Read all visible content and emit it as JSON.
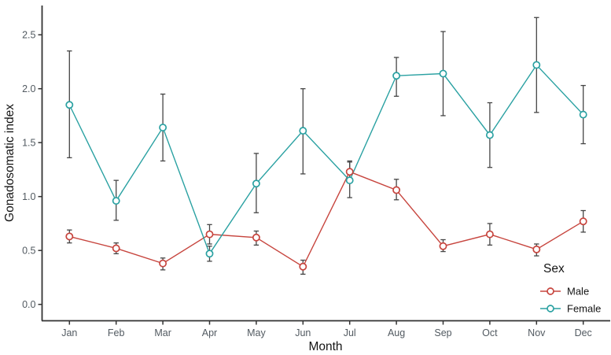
{
  "chart_data": {
    "type": "line",
    "title": "",
    "xlabel": "Month",
    "ylabel": "Gonadosomatic index",
    "categories": [
      "Jan",
      "Feb",
      "Mar",
      "Apr",
      "May",
      "Jun",
      "Jul",
      "Aug",
      "Sep",
      "Oct",
      "Nov",
      "Dec"
    ],
    "y_ticks": [
      {
        "value": 0.0,
        "label": "0.0"
      },
      {
        "value": 0.5,
        "label": "0.5"
      },
      {
        "value": 1.0,
        "label": "1.0"
      },
      {
        "value": 1.5,
        "label": "1.5"
      },
      {
        "value": 2.0,
        "label": "2.0"
      },
      {
        "value": 2.5,
        "label": "2.5"
      }
    ],
    "ylim": [
      -0.14,
      2.76
    ],
    "grid": false,
    "legend": {
      "title": "Sex",
      "position": "inside-bottom-right"
    },
    "marker": "open-circle",
    "error_bar_color": "#454545",
    "axis_color": "#333333",
    "series": [
      {
        "name": "Male",
        "color": "#c7453e",
        "values": [
          0.63,
          0.52,
          0.38,
          0.65,
          0.62,
          0.35,
          1.23,
          1.06,
          0.54,
          0.65,
          0.51,
          0.77
        ],
        "err_low": [
          0.57,
          0.47,
          0.32,
          0.56,
          0.55,
          0.28,
          1.14,
          0.97,
          0.49,
          0.55,
          0.45,
          0.67
        ],
        "err_high": [
          0.69,
          0.57,
          0.43,
          0.74,
          0.68,
          0.41,
          1.32,
          1.16,
          0.6,
          0.75,
          0.56,
          0.87
        ]
      },
      {
        "name": "Female",
        "color": "#2aa1a2",
        "values": [
          1.85,
          0.96,
          1.64,
          0.47,
          1.12,
          1.61,
          1.15,
          2.12,
          2.14,
          1.57,
          2.22,
          1.76
        ],
        "err_low": [
          1.36,
          0.78,
          1.33,
          0.4,
          0.85,
          1.21,
          0.99,
          1.93,
          1.75,
          1.27,
          1.78,
          1.49
        ],
        "err_high": [
          2.35,
          1.15,
          1.95,
          0.54,
          1.4,
          2.0,
          1.33,
          2.29,
          2.53,
          1.87,
          2.66,
          2.03
        ]
      }
    ]
  }
}
